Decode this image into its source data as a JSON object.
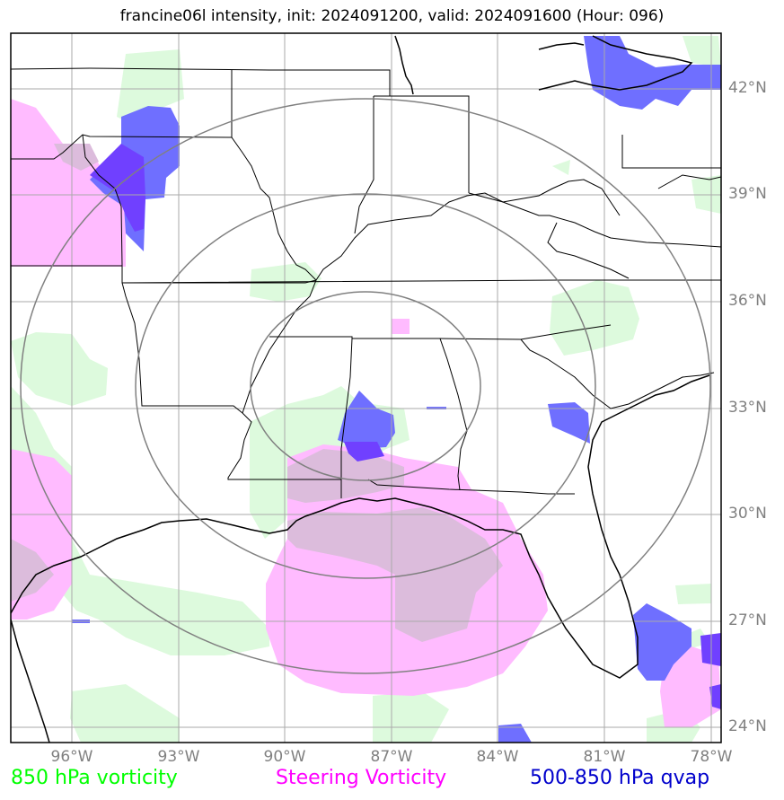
{
  "title": "francine06l intensity, init: 2024091200, valid: 2024091600 (Hour: 096)",
  "lat_labels": [
    "42°N",
    "39°N",
    "36°N",
    "33°N",
    "30°N",
    "27°N",
    "24°N"
  ],
  "lon_labels": [
    "96°W",
    "93°W",
    "90°W",
    "87°W",
    "84°W",
    "81°W",
    "78°W"
  ],
  "legend": [
    {
      "label": "850 hPa vorticity",
      "color": "#00ff00"
    },
    {
      "label": "Steering Vorticity",
      "color": "#ff00ff"
    },
    {
      "label": "500-850 hPa qvap",
      "color": "#0000cc"
    }
  ],
  "colors": {
    "vorticity_fill": "#ddfadd",
    "steering_fill": "#ffbbff",
    "overlap_fill": "#dcbcdc",
    "qvap_fill": "#6f6fff",
    "qvap_dark": "#7040ff",
    "gridline": "#aaaaaa",
    "range_ring": "#808080"
  }
}
